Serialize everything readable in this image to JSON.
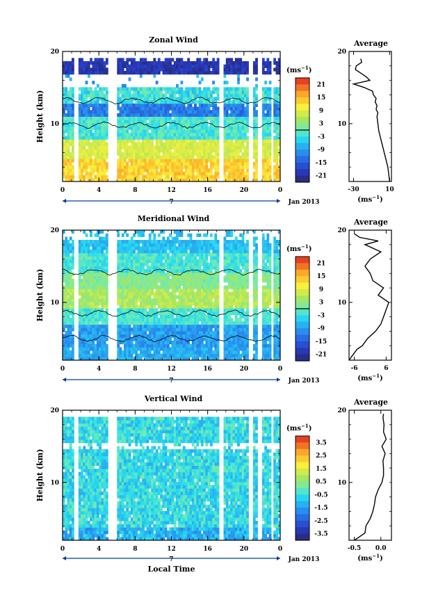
{
  "chart_data": [
    {
      "type": "heatmap",
      "title": "Zonal Wind",
      "ylabel": "Height (km)",
      "xlabel": "",
      "date_label": "Jan 2013",
      "day_label": "7",
      "x_ticks": [
        "0",
        "4",
        "8",
        "12",
        "16",
        "20",
        "0"
      ],
      "x_range_hours": [
        0,
        24
      ],
      "y_ticks": [
        "20",
        "10"
      ],
      "ylim": [
        2,
        20
      ],
      "colorbar": {
        "unit": "(ms",
        "unit_exp": "−1",
        "unit_close": ")",
        "ticks": [
          "21",
          "15",
          "9",
          "3",
          "-3",
          "-9",
          "-15",
          "-21"
        ],
        "range": [
          -24,
          24
        ],
        "zero_contour": true
      },
      "missing_hour_bands": [
        [
          1.3,
          1.8
        ],
        [
          5.1,
          5.9
        ],
        [
          17.3,
          17.8
        ],
        [
          20.4,
          20.9
        ],
        [
          21.6,
          22.1
        ],
        [
          22.9,
          23.3
        ]
      ],
      "average_profile": {
        "title": "Average",
        "x_ticks": [
          "-30",
          "10"
        ],
        "xlim": [
          -35,
          12
        ],
        "unit": "(ms",
        "unit_exp": "−1",
        "unit_close": ")",
        "y_ticks": [
          "20",
          "10"
        ],
        "height_km": [
          2,
          3,
          4,
          5,
          6,
          7,
          8,
          9,
          10,
          11,
          11.5,
          12,
          12.5,
          13,
          13.5,
          14,
          14.5,
          15,
          15.5,
          16,
          16.5,
          17,
          17.5,
          18,
          18.5,
          19
        ],
        "wind_ms": [
          10,
          9,
          8,
          6,
          4,
          2,
          0,
          -2,
          -3,
          -4,
          -3,
          -5,
          -4,
          -6,
          -5,
          -8,
          -9,
          -18,
          -30,
          -12,
          -16,
          -22,
          -28,
          -27,
          -21,
          -22
        ]
      }
    },
    {
      "type": "heatmap",
      "title": "Meridional Wind",
      "ylabel": "Height (km)",
      "xlabel": "",
      "date_label": "Jan 2013",
      "day_label": "7",
      "x_ticks": [
        "0",
        "4",
        "8",
        "12",
        "16",
        "20",
        "0"
      ],
      "x_range_hours": [
        0,
        24
      ],
      "y_ticks": [
        "20",
        "10"
      ],
      "ylim": [
        2,
        20
      ],
      "colorbar": {
        "unit": "(ms",
        "unit_exp": "−1",
        "unit_close": ")",
        "ticks": [
          "21",
          "15",
          "9",
          "3",
          "-3",
          "-9",
          "-15",
          "-21"
        ],
        "range": [
          -24,
          24
        ],
        "zero_contour": true
      },
      "missing_hour_bands": [
        [
          1.3,
          1.8
        ],
        [
          5.1,
          5.9
        ],
        [
          17.3,
          17.8
        ],
        [
          20.4,
          20.9
        ],
        [
          21.6,
          22.1
        ],
        [
          22.9,
          23.3
        ]
      ],
      "average_profile": {
        "title": "Average",
        "x_ticks": [
          "-6",
          "6"
        ],
        "xlim": [
          -8,
          8
        ],
        "unit": "(ms",
        "unit_exp": "−1",
        "unit_close": ")",
        "y_ticks": [
          "20",
          "10"
        ],
        "height_km": [
          2,
          2.5,
          3,
          3.5,
          4,
          5,
          6,
          7,
          8,
          9,
          10,
          11,
          12,
          13,
          14,
          15,
          16,
          17,
          18,
          18.5,
          19,
          19.5
        ],
        "wind_ms": [
          -8,
          -7,
          -6,
          -5,
          -3,
          -1,
          2,
          4,
          5,
          6,
          7,
          3,
          5,
          1,
          0,
          -2,
          0,
          4,
          -2,
          3,
          -4,
          -6
        ]
      }
    },
    {
      "type": "heatmap",
      "title": "Vertical Wind",
      "ylabel": "Height (km)",
      "xlabel": "Local Time",
      "date_label": "Jan 2013",
      "day_label": "7",
      "x_ticks": [
        "0",
        "4",
        "8",
        "12",
        "16",
        "20",
        "0"
      ],
      "x_range_hours": [
        0,
        24
      ],
      "y_ticks": [
        "20",
        "10"
      ],
      "ylim": [
        2,
        20
      ],
      "colorbar": {
        "unit": "(ms",
        "unit_exp": "−1",
        "unit_close": ")",
        "ticks": [
          "3.5",
          "2.5",
          "1.5",
          "0.5",
          "-0.5",
          "-1.5",
          "-2.5",
          "-3.5"
        ],
        "range": [
          -4,
          4
        ],
        "zero_contour": false
      },
      "missing_hour_bands": [
        [
          1.3,
          1.8
        ],
        [
          5.1,
          5.9
        ],
        [
          17.3,
          17.8
        ],
        [
          20.4,
          20.9
        ],
        [
          21.6,
          22.1
        ],
        [
          22.9,
          23.3
        ]
      ],
      "average_profile": {
        "title": "Average",
        "x_ticks": [
          "-0.5",
          "0.0"
        ],
        "xlim": [
          -0.6,
          0.2
        ],
        "unit": "(ms",
        "unit_exp": "−1",
        "unit_close": ")",
        "y_ticks": [
          "20",
          "10"
        ],
        "height_km": [
          2,
          2.5,
          3,
          4,
          5,
          6,
          7,
          8,
          9,
          10,
          11,
          12,
          13,
          14,
          15,
          16,
          17,
          18,
          19,
          19.5
        ],
        "wind_ms": [
          -0.5,
          -0.4,
          -0.3,
          -0.28,
          -0.2,
          -0.15,
          -0.12,
          -0.1,
          -0.05,
          0.02,
          0.05,
          0.05,
          0.04,
          0.08,
          0.02,
          0.1,
          0.05,
          0.06,
          0.04,
          0.05
        ]
      }
    }
  ]
}
